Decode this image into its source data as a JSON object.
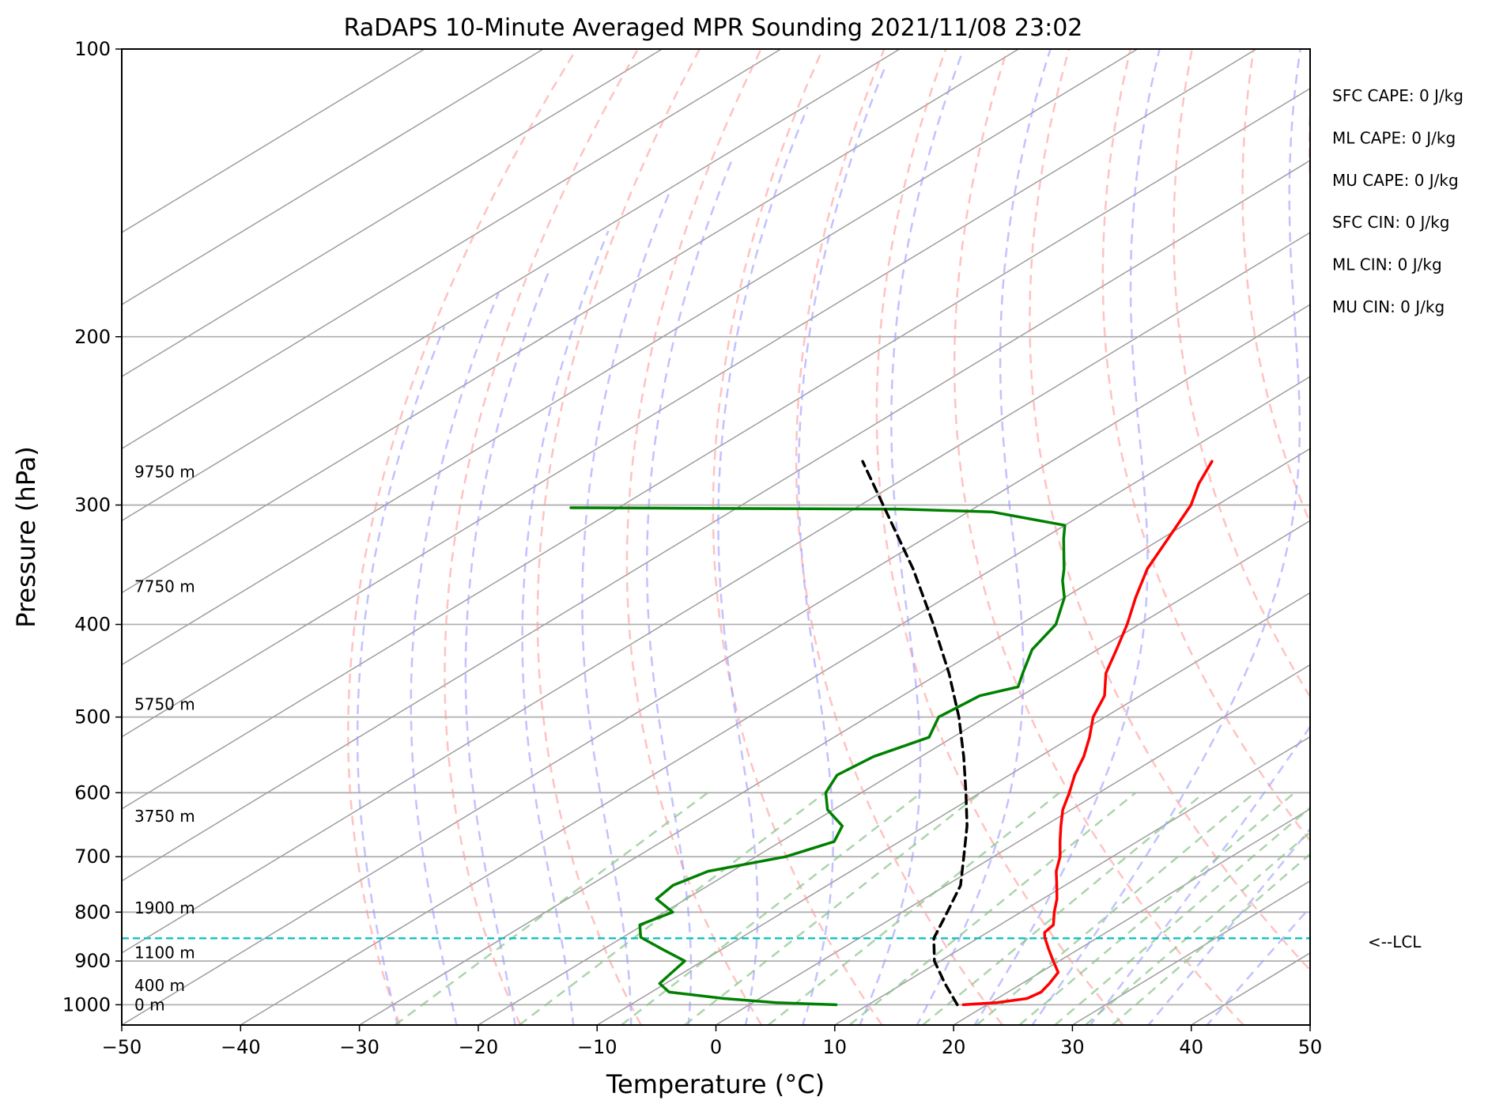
{
  "chart_data": {
    "type": "line",
    "subtype": "skew-t log-p sounding",
    "title": "RaDAPS 10-Minute Averaged MPR Sounding 2021/11/08 23:02",
    "xlabel": "Temperature (°C)",
    "ylabel": "Pressure (hPa)",
    "xlim": [
      -50,
      50
    ],
    "ylim": [
      1050,
      100
    ],
    "y_scale": "log",
    "grid": true,
    "x_ticks": [
      "−50",
      "−40",
      "−30",
      "−20",
      "−10",
      "0",
      "10",
      "20",
      "30",
      "40",
      "50"
    ],
    "y_ticks": [
      "100",
      "200",
      "300",
      "400",
      "500",
      "600",
      "700",
      "800",
      "900",
      "1000"
    ],
    "series": [
      {
        "color": "#ff0000",
        "p": [
          1000,
          995,
          985,
          970,
          950,
          925,
          900,
          875,
          850,
          840,
          825,
          800,
          775,
          750,
          725,
          700,
          675,
          650,
          625,
          600,
          575,
          550,
          525,
          500,
          475,
          450,
          425,
          400,
          375,
          350,
          325,
          300,
          285,
          270
        ],
        "t": [
          18,
          20.5,
          22.5,
          22.8,
          22.3,
          21.5,
          19.5,
          17.5,
          15.5,
          14.8,
          14.5,
          12.8,
          11.2,
          9.3,
          7.3,
          5.6,
          3.5,
          1.4,
          -0.7,
          -2.5,
          -4.5,
          -6.3,
          -8.5,
          -11,
          -13,
          -16,
          -18.4,
          -21,
          -24,
          -27,
          -29.5,
          -32.2,
          -34.5,
          -36.5
        ]
      },
      {
        "color": "#008000",
        "p": [
          1000,
          995,
          985,
          970,
          950,
          925,
          900,
          875,
          850,
          825,
          800,
          775,
          750,
          725,
          700,
          675,
          650,
          625,
          600,
          575,
          550,
          525,
          500,
          475,
          465,
          450,
          425,
          400,
          375,
          360,
          350,
          325,
          315,
          305,
          303,
          302
        ],
        "t": [
          7.3,
          2,
          -3,
          -8.5,
          -10.5,
          -11,
          -11.5,
          -15,
          -18.5,
          -20.3,
          -19.3,
          -22.5,
          -23,
          -22,
          -17.5,
          -15.5,
          -17,
          -20.5,
          -23,
          -24.5,
          -24,
          -22,
          -24,
          -23.5,
          -21.5,
          -23,
          -25.5,
          -27,
          -30,
          -32.5,
          -34,
          -38.3,
          -40,
          -48,
          -56,
          -84
        ]
      },
      {
        "color": "#000000",
        "dashed": true,
        "p": [
          1000,
          950,
          900,
          852,
          800,
          750,
          700,
          650,
          600,
          550,
          500,
          450,
          400,
          350,
          300,
          270
        ],
        "t": [
          17.5,
          13.5,
          9.5,
          6.3,
          3.8,
          1.2,
          -2.5,
          -6.5,
          -11.2,
          -16.4,
          -22.3,
          -29.2,
          -37.3,
          -46.7,
          -58.1,
          -65.9
        ]
      }
    ],
    "lcl": {
      "p": 852,
      "label": "<--LCL"
    },
    "height_labels": [
      {
        "p": 277,
        "label": "9750 m"
      },
      {
        "p": 365,
        "label": "7750 m"
      },
      {
        "p": 485,
        "label": "5750 m"
      },
      {
        "p": 635,
        "label": "3750 m"
      },
      {
        "p": 792,
        "label": "1900 m"
      },
      {
        "p": 882,
        "label": "1100 m"
      },
      {
        "p": 955,
        "label": "400 m"
      },
      {
        "p": 1000,
        "label": "0 m"
      }
    ],
    "indices": [
      "SFC CAPE: 0 J/kg",
      "ML CAPE: 0 J/kg",
      "MU CAPE: 0 J/kg",
      "SFC CIN: 0 J/kg",
      "ML CIN: 0 J/kg",
      "MU CIN: 0 J/kg"
    ],
    "colors": {
      "temperature": "#ff0000",
      "dewpoint": "#008000",
      "parcel": "#000000",
      "lcl_line": "#00bfbf",
      "dry_adiabats": "#ff9999",
      "moist_adiabats": "#9999ff",
      "mixing_ratio": "#88c488",
      "isotherms": "#9e9e9e"
    }
  }
}
